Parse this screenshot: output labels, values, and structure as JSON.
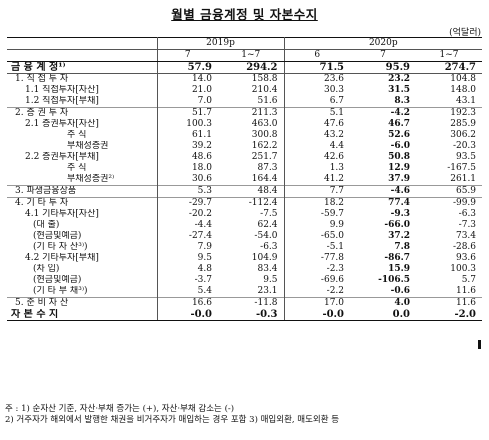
{
  "title": "월별 금융계정 및 자본수지",
  "unit": "(억달러)",
  "years": [
    "2019p",
    "2020p"
  ],
  "cols": [
    "7",
    "1~7",
    "6",
    "7",
    "1~7"
  ],
  "rows": [
    {
      "label": "금 융 계 정¹⁾",
      "v": [
        "57.9",
        "294.2",
        "71.5",
        "95.9",
        "274.7"
      ],
      "cls": "total",
      "indent": 0
    },
    {
      "label": "1. 직 접 투 자",
      "v": [
        "14.0",
        "158.8",
        "23.6",
        "23.2",
        "104.8"
      ],
      "indent": 1
    },
    {
      "label": "1.1 직접투자[자산]",
      "v": [
        "21.0",
        "210.4",
        "30.3",
        "31.5",
        "148.0"
      ],
      "indent": 2
    },
    {
      "label": "1.2 직접투자[부채]",
      "v": [
        "7.0",
        "51.6",
        "6.7",
        "8.3",
        "43.1"
      ],
      "indent": 2
    },
    {
      "label": "2. 증 권 투 자",
      "v": [
        "51.7",
        "211.3",
        "5.1",
        "-4.2",
        "192.3"
      ],
      "indent": 1,
      "grp": true
    },
    {
      "label": "2.1 증권투자[자산]",
      "v": [
        "100.3",
        "463.0",
        "47.6",
        "46.7",
        "285.9"
      ],
      "indent": 2
    },
    {
      "label": "주    식",
      "v": [
        "61.1",
        "300.8",
        "43.2",
        "52.6",
        "306.2"
      ],
      "indent": 4
    },
    {
      "label": "부채성증권",
      "v": [
        "39.2",
        "162.2",
        "4.4",
        "-6.0",
        "-20.3"
      ],
      "indent": 4
    },
    {
      "label": "2.2 증권투자[부채]",
      "v": [
        "48.6",
        "251.7",
        "42.6",
        "50.8",
        "93.5"
      ],
      "indent": 2
    },
    {
      "label": "주    식",
      "v": [
        "18.0",
        "87.3",
        "1.3",
        "12.9",
        "-167.5"
      ],
      "indent": 4
    },
    {
      "label": "부채성증권²⁾",
      "v": [
        "30.6",
        "164.4",
        "41.2",
        "37.9",
        "261.1"
      ],
      "indent": 4
    },
    {
      "label": "3. 파생금융상품",
      "v": [
        "5.3",
        "48.4",
        "7.7",
        "-4.6",
        "65.9"
      ],
      "indent": 1,
      "grp": true
    },
    {
      "label": "4. 기 타 투 자",
      "v": [
        "-29.7",
        "-112.4",
        "18.2",
        "77.4",
        "-99.9"
      ],
      "indent": 1,
      "grp": true
    },
    {
      "label": "4.1 기타투자[자산]",
      "v": [
        "-20.2",
        "-7.5",
        "-59.7",
        "-9.3",
        "-6.3"
      ],
      "indent": 2
    },
    {
      "label": "(대    출)",
      "v": [
        "-4.4",
        "62.4",
        "9.9",
        "-66.0",
        "-7.3"
      ],
      "indent": 3
    },
    {
      "label": "(현금및예금)",
      "v": [
        "-27.4",
        "-54.0",
        "-65.0",
        "37.2",
        "73.4"
      ],
      "indent": 3
    },
    {
      "label": "(기 타 자 산³⁾)",
      "v": [
        "7.9",
        "-6.3",
        "-5.1",
        "7.8",
        "-28.6"
      ],
      "indent": 3
    },
    {
      "label": "4.2 기타투자[부채]",
      "v": [
        "9.5",
        "104.9",
        "-77.8",
        "-86.7",
        "93.6"
      ],
      "indent": 2
    },
    {
      "label": "(차    입)",
      "v": [
        "4.8",
        "83.4",
        "-2.3",
        "15.9",
        "100.3"
      ],
      "indent": 3
    },
    {
      "label": "(현금및예금)",
      "v": [
        "-3.7",
        "9.5",
        "-69.6",
        "-106.5",
        "5.7"
      ],
      "indent": 3
    },
    {
      "label": "(기 타 부 채³⁾)",
      "v": [
        "5.4",
        "23.1",
        "-2.2",
        "-0.6",
        "11.6"
      ],
      "indent": 3
    },
    {
      "label": "5. 준 비 자 산",
      "v": [
        "16.6",
        "-11.8",
        "17.0",
        "4.0",
        "11.6"
      ],
      "indent": 1,
      "grp": true
    },
    {
      "label": "자 본 수 지",
      "v": [
        "-0.0",
        "-0.3",
        "-0.0",
        "0.0",
        "-2.0"
      ],
      "cls": "total",
      "indent": 0
    }
  ],
  "notes": [
    "주 : 1) 순자산 기준, 자산·부채 증가는 (+), 자산·부채 감소는 (-)",
    "      2) 거주자가 해외에서 발행한 채권을 비거주자가 매입하는 경우 포함        3) 매입외환, 매도외환 등"
  ]
}
